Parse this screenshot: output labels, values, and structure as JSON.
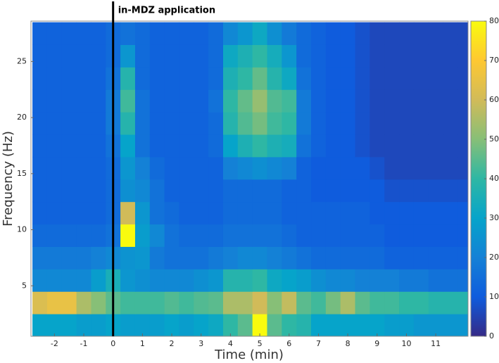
{
  "chart_data": {
    "type": "heatmap",
    "xlabel": "Time (min)",
    "ylabel": "Frequency (Hz)",
    "annotation": {
      "text": "in-MDZ application",
      "x": 0
    },
    "xlim": [
      -2.8,
      12.1
    ],
    "ylim": [
      0.5,
      28.6
    ],
    "xticks": [
      -2,
      -1,
      0,
      1,
      2,
      3,
      4,
      5,
      6,
      7,
      8,
      9,
      10,
      11
    ],
    "yticks": [
      5,
      10,
      15,
      20,
      25
    ],
    "xbins": [
      -2.75,
      -2.25,
      -1.75,
      -1.25,
      -0.75,
      -0.25,
      0.25,
      0.75,
      1.25,
      1.75,
      2.25,
      2.75,
      3.25,
      3.75,
      4.25,
      4.75,
      5.25,
      5.75,
      6.25,
      6.75,
      7.25,
      7.75,
      8.25,
      8.75,
      9.25,
      9.75,
      10.25,
      10.75,
      11.25,
      11.75,
      12.25
    ],
    "ybins": [
      0.5,
      2.5,
      4.5,
      6.5,
      8.5,
      10.5,
      12.5,
      14.5,
      16.5,
      18.5,
      20.5,
      22.5,
      24.5,
      26.5,
      28.5
    ],
    "values": [
      [
        30,
        30,
        30,
        28,
        28,
        30,
        28,
        28,
        28,
        30,
        28,
        30,
        32,
        40,
        45,
        80,
        45,
        40,
        38,
        30,
        30,
        30,
        30,
        30,
        28,
        28,
        26,
        26,
        26,
        26
      ],
      [
        62,
        65,
        65,
        55,
        50,
        45,
        42,
        42,
        42,
        44,
        42,
        44,
        45,
        55,
        55,
        60,
        50,
        58,
        45,
        42,
        48,
        55,
        45,
        42,
        42,
        40,
        40,
        38,
        38,
        38
      ],
      [
        22,
        22,
        22,
        22,
        28,
        35,
        26,
        24,
        22,
        22,
        22,
        24,
        26,
        38,
        38,
        40,
        32,
        30,
        28,
        24,
        22,
        22,
        20,
        20,
        20,
        18,
        18,
        16,
        16,
        16
      ],
      [
        18,
        18,
        18,
        18,
        20,
        22,
        25,
        26,
        18,
        16,
        16,
        16,
        18,
        20,
        22,
        22,
        20,
        18,
        16,
        14,
        14,
        14,
        14,
        14,
        12,
        12,
        12,
        12,
        12,
        12
      ],
      [
        14,
        14,
        14,
        14,
        14,
        16,
        80,
        28,
        22,
        16,
        14,
        14,
        14,
        16,
        16,
        16,
        16,
        14,
        12,
        12,
        12,
        12,
        12,
        12,
        10,
        10,
        10,
        10,
        10,
        10
      ],
      [
        12,
        12,
        12,
        12,
        12,
        14,
        60,
        26,
        16,
        14,
        12,
        12,
        12,
        14,
        14,
        14,
        14,
        12,
        12,
        12,
        12,
        12,
        12,
        10,
        10,
        10,
        10,
        10,
        10,
        10
      ],
      [
        12,
        12,
        12,
        12,
        12,
        14,
        24,
        22,
        16,
        12,
        12,
        12,
        12,
        14,
        14,
        14,
        14,
        12,
        12,
        10,
        10,
        10,
        10,
        10,
        8,
        8,
        8,
        8,
        8,
        8
      ],
      [
        12,
        12,
        12,
        12,
        12,
        14,
        26,
        20,
        14,
        12,
        12,
        12,
        12,
        20,
        22,
        24,
        22,
        20,
        12,
        10,
        10,
        10,
        10,
        8,
        6,
        6,
        6,
        6,
        6,
        6
      ],
      [
        12,
        12,
        12,
        12,
        12,
        16,
        30,
        16,
        12,
        12,
        12,
        12,
        14,
        30,
        36,
        40,
        36,
        34,
        16,
        12,
        10,
        10,
        8,
        6,
        6,
        6,
        6,
        6,
        6,
        6
      ],
      [
        12,
        12,
        12,
        12,
        12,
        18,
        38,
        16,
        12,
        12,
        12,
        12,
        14,
        38,
        44,
        48,
        42,
        40,
        18,
        12,
        10,
        10,
        8,
        6,
        6,
        6,
        6,
        6,
        6,
        6
      ],
      [
        12,
        12,
        12,
        12,
        12,
        18,
        42,
        16,
        12,
        12,
        12,
        12,
        16,
        40,
        46,
        52,
        44,
        42,
        18,
        12,
        10,
        10,
        8,
        6,
        6,
        6,
        6,
        6,
        6,
        6
      ],
      [
        12,
        12,
        12,
        12,
        12,
        16,
        38,
        14,
        12,
        12,
        12,
        12,
        14,
        36,
        40,
        46,
        38,
        32,
        16,
        12,
        10,
        10,
        8,
        6,
        6,
        6,
        6,
        6,
        6,
        6
      ],
      [
        12,
        12,
        12,
        12,
        12,
        14,
        26,
        14,
        12,
        12,
        12,
        12,
        14,
        32,
        36,
        40,
        34,
        26,
        14,
        12,
        10,
        10,
        8,
        6,
        6,
        6,
        6,
        6,
        6,
        6
      ],
      [
        12,
        12,
        12,
        12,
        12,
        14,
        16,
        14,
        12,
        12,
        12,
        12,
        14,
        22,
        26,
        32,
        24,
        18,
        14,
        12,
        10,
        10,
        8,
        6,
        6,
        6,
        6,
        6,
        6,
        6
      ]
    ],
    "colorbar": {
      "lim": [
        0,
        80
      ],
      "ticks": [
        0,
        10,
        20,
        30,
        40,
        50,
        60,
        70,
        80
      ]
    },
    "colors": [
      "#352a87",
      "#0f5cdd",
      "#1481d6",
      "#06a4ca",
      "#2eb7a4",
      "#87bf77",
      "#d1bb59",
      "#fec832",
      "#f9fb0e"
    ]
  }
}
